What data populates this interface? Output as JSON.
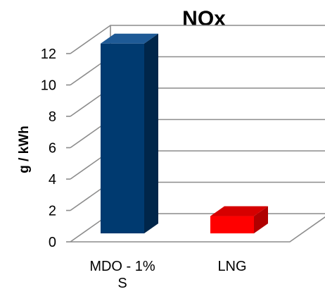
{
  "chart_data": {
    "type": "bar",
    "title": "NOx",
    "ylabel": "g / kWh",
    "xlabel": "",
    "categories": [
      "MDO - 1%\nS",
      "LNG"
    ],
    "values": [
      12.1,
      1.1
    ],
    "ylim": [
      0,
      12
    ],
    "yticks": [
      0,
      2,
      4,
      6,
      8,
      10,
      12
    ],
    "grid": true,
    "legend": "none",
    "colors": {
      "bars": [
        {
          "front": "#003A70",
          "side": "#00264A",
          "top": "#1E5A96"
        },
        {
          "front": "#FF0000",
          "side": "#B00000",
          "top": "#D60000"
        }
      ],
      "grid": "#8C8C8C"
    }
  }
}
